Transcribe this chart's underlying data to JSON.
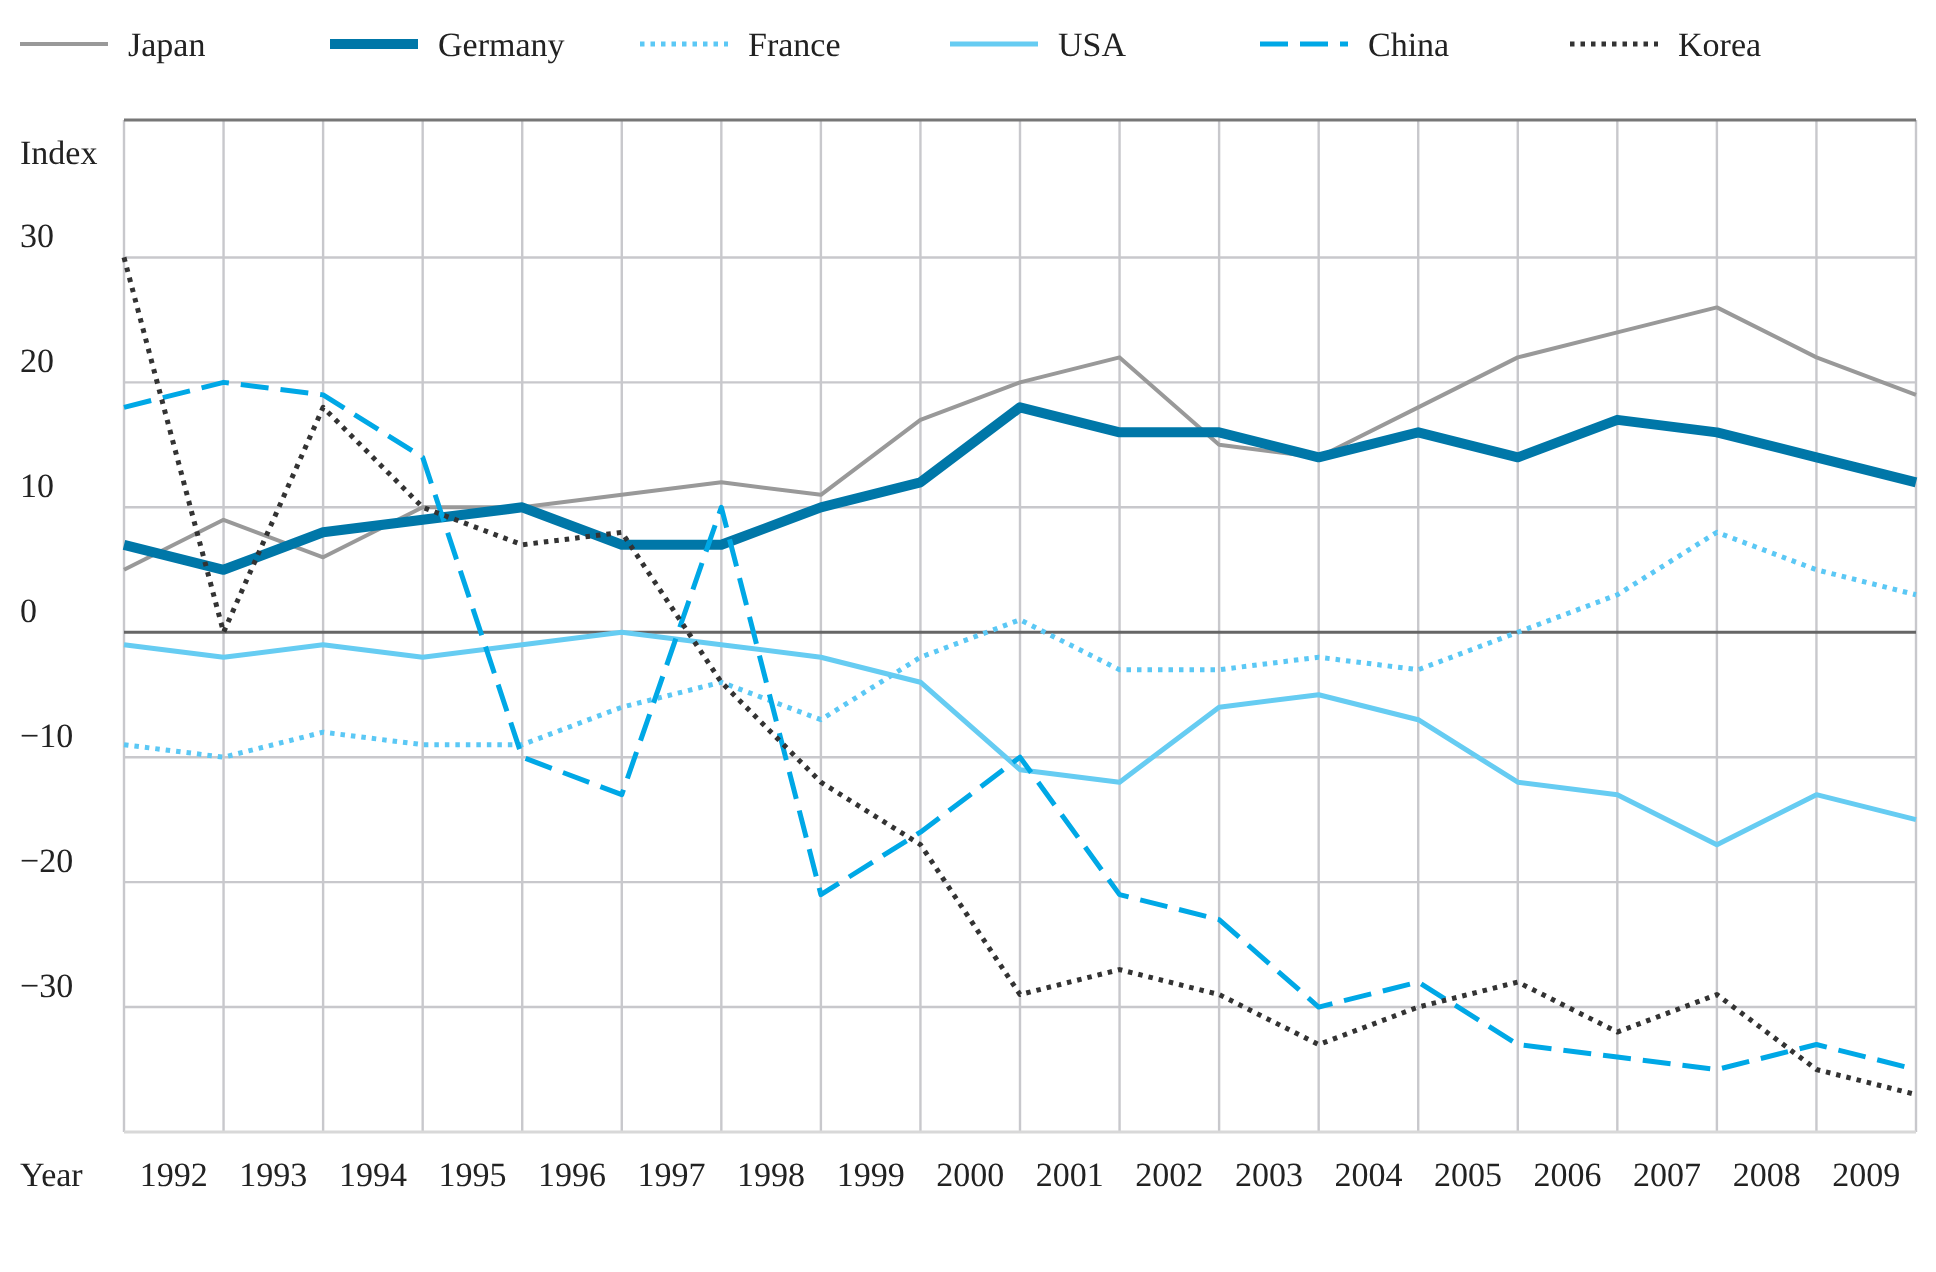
{
  "chart_data": {
    "type": "line",
    "xlabel": "Year",
    "ylabel": "Index",
    "x": [
      1991.5,
      1992.5,
      1993.5,
      1994.5,
      1995.5,
      1996.5,
      1997.5,
      1998.5,
      1999.5,
      2000.5,
      2001.5,
      2002.5,
      2003.5,
      2004.5,
      2005.5,
      2006.5,
      2007.5,
      2008.5,
      2009.5
    ],
    "xlim": [
      1991.5,
      2009.5
    ],
    "xticks": [
      {
        "value": 1991.5,
        "label": null
      },
      {
        "value": 1992,
        "label": "1992"
      },
      {
        "value": 1992.5,
        "label": null
      },
      {
        "value": 1993,
        "label": "1993"
      },
      {
        "value": 1993.5,
        "label": null
      },
      {
        "value": 1994,
        "label": "1994"
      },
      {
        "value": 1994.5,
        "label": null
      },
      {
        "value": 1995,
        "label": "1995"
      },
      {
        "value": 1995.5,
        "label": null
      },
      {
        "value": 1996,
        "label": "1996"
      },
      {
        "value": 1996.5,
        "label": null
      },
      {
        "value": 1997,
        "label": "1997"
      },
      {
        "value": 1997.5,
        "label": null
      },
      {
        "value": 1998,
        "label": "1998"
      },
      {
        "value": 1998.5,
        "label": null
      },
      {
        "value": 1999,
        "label": "1999"
      },
      {
        "value": 1999.5,
        "label": null
      },
      {
        "value": 2000,
        "label": "2000"
      },
      {
        "value": 2000.5,
        "label": null
      },
      {
        "value": 2001,
        "label": "2001"
      },
      {
        "value": 2001.5,
        "label": null
      },
      {
        "value": 2002,
        "label": "2002"
      },
      {
        "value": 2002.5,
        "label": null
      },
      {
        "value": 2003,
        "label": "2003"
      },
      {
        "value": 2003.5,
        "label": null
      },
      {
        "value": 2004,
        "label": "2004"
      },
      {
        "value": 2004.5,
        "label": null
      },
      {
        "value": 2005,
        "label": "2005"
      },
      {
        "value": 2005.5,
        "label": null
      },
      {
        "value": 2006,
        "label": "2006"
      },
      {
        "value": 2006.5,
        "label": null
      },
      {
        "value": 2007,
        "label": "2007"
      },
      {
        "value": 2007.5,
        "label": null
      },
      {
        "value": 2008,
        "label": "2008"
      },
      {
        "value": 2008.5,
        "label": null
      },
      {
        "value": 2009,
        "label": "2009"
      },
      {
        "value": 2009.5,
        "label": null
      }
    ],
    "ylim": [
      -40,
      41
    ],
    "yticks": [
      -30,
      -20,
      -10,
      0,
      10,
      20,
      30
    ],
    "grid": true,
    "legend": "top",
    "series": [
      {
        "name": "Japan",
        "color": "#999999",
        "line_style": "solid",
        "values": [
          5,
          9,
          6,
          10,
          10,
          11,
          12,
          11,
          17,
          20,
          22,
          15,
          14,
          18,
          22,
          24,
          26,
          22,
          19
        ]
      },
      {
        "name": "Germany",
        "color": "#0077a8",
        "line_style": "solid",
        "values": [
          7,
          5,
          8,
          9,
          10,
          7,
          7,
          10,
          12,
          18,
          16,
          16,
          14,
          16,
          14,
          17,
          16,
          14,
          12
        ]
      },
      {
        "name": "France",
        "color": "#5bc8f5",
        "line_style": "dotted",
        "values": [
          -9,
          -10,
          -8,
          -9,
          -9,
          -6,
          -4,
          -7,
          -2,
          1,
          -3,
          -3,
          -2,
          -3,
          0,
          3,
          8,
          5,
          3
        ]
      },
      {
        "name": "USA",
        "color": "#66ccf2",
        "line_style": "solid",
        "values": [
          -1,
          -2,
          -1,
          -2,
          -1,
          0,
          -1,
          -2,
          -4,
          -11,
          -12,
          -6,
          -5,
          -7,
          -12,
          -13,
          -17,
          -13,
          -15
        ]
      },
      {
        "name": "China",
        "color": "#00a8e6",
        "line_style": "dashed",
        "values": [
          18,
          20,
          19,
          14,
          -10,
          -13,
          10,
          -21,
          -16,
          -10,
          -21,
          -23,
          -30,
          -28,
          -33,
          -34,
          -35,
          -33,
          -35
        ]
      },
      {
        "name": "Korea",
        "color": "#333333",
        "line_style": "dotted",
        "values": [
          30,
          0,
          18,
          10,
          7,
          8,
          -4,
          -12,
          -17,
          -29,
          -27,
          -29,
          -33,
          -30,
          -28,
          -32,
          -29,
          -35,
          -37
        ]
      }
    ]
  }
}
